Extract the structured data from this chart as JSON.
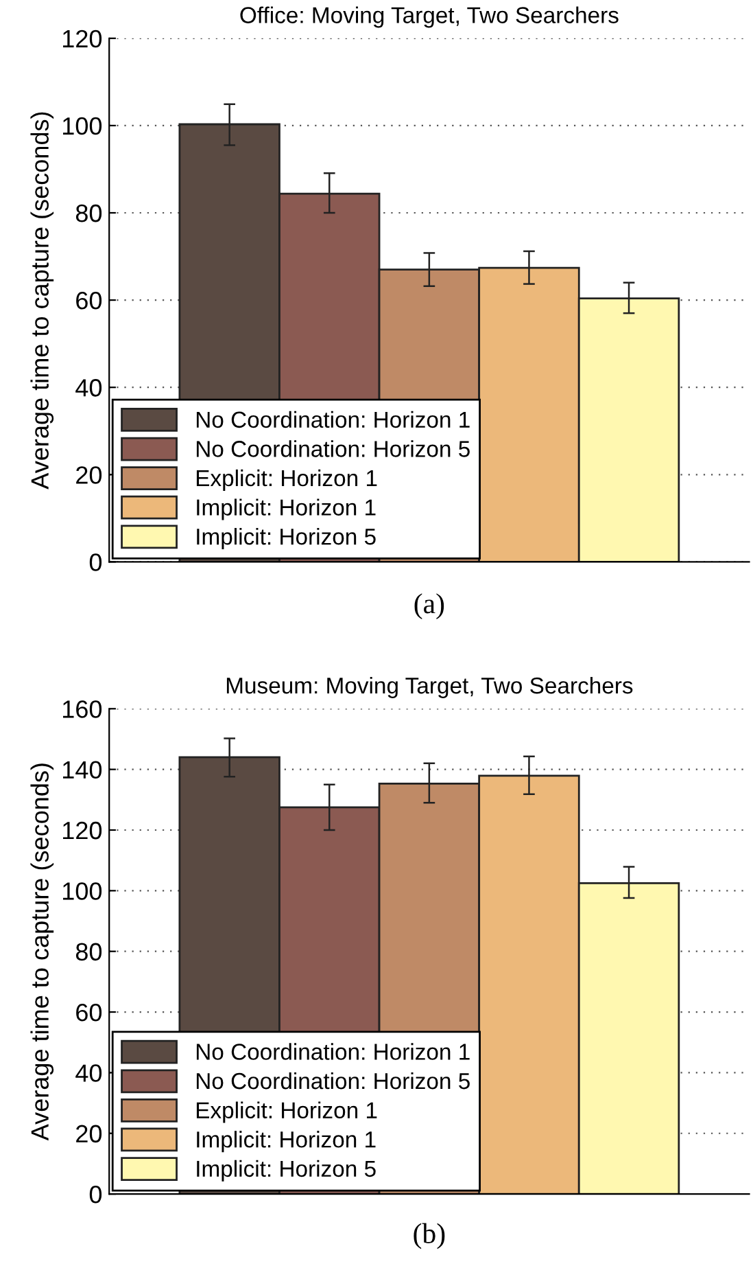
{
  "chart_data": [
    {
      "type": "bar",
      "title": "Office: Moving Target, Two Searchers",
      "ylabel": "Average time to capture (seconds)",
      "categories": [
        null
      ],
      "series": [
        {
          "name": "No Coordination: Horizon 1",
          "color": "#5a4a42",
          "values": [
            100.3
          ],
          "errors": [
            [
              95.5,
              104.9
            ]
          ]
        },
        {
          "name": "No Coordination: Horizon 5",
          "color": "#8b5a52",
          "values": [
            84.4
          ],
          "errors": [
            [
              80.0,
              89.1
            ]
          ]
        },
        {
          "name": "Explicit: Horizon 1",
          "color": "#bf8a66",
          "values": [
            67.0
          ],
          "errors": [
            [
              63.2,
              70.8
            ]
          ]
        },
        {
          "name": "Implicit: Horizon 1",
          "color": "#ecb87a",
          "values": [
            67.4
          ],
          "errors": [
            [
              63.7,
              71.2
            ]
          ]
        },
        {
          "name": "Implicit: Horizon 5",
          "color": "#fff8b0",
          "values": [
            60.4
          ],
          "errors": [
            [
              57.0,
              64.0
            ]
          ]
        }
      ],
      "ylim": [
        0,
        120
      ],
      "yticks": [
        0,
        20,
        40,
        60,
        80,
        100,
        120
      ],
      "grid": "y",
      "legend": "bottom left",
      "tick_labels": "y",
      "annotations": [
        "(a)"
      ]
    },
    {
      "type": "bar",
      "title": "Museum: Moving Target, Two Searchers",
      "ylabel": "Average time to capture (seconds)",
      "categories": [
        null
      ],
      "series": [
        {
          "name": "No Coordination: Horizon 1",
          "color": "#5a4a42",
          "values": [
            144.0
          ],
          "errors": [
            [
              137.6,
              150.2
            ]
          ]
        },
        {
          "name": "No Coordination: Horizon 5",
          "color": "#8b5a52",
          "values": [
            127.5
          ],
          "errors": [
            [
              120.0,
              135.0
            ]
          ]
        },
        {
          "name": "Explicit: Horizon 1",
          "color": "#bf8a66",
          "values": [
            135.3
          ],
          "errors": [
            [
              129.0,
              142.0
            ]
          ]
        },
        {
          "name": "Implicit: Horizon 1",
          "color": "#ecb87a",
          "values": [
            137.9
          ],
          "errors": [
            [
              131.8,
              144.3
            ]
          ]
        },
        {
          "name": "Implicit: Horizon 5",
          "color": "#fff8b0",
          "values": [
            102.5
          ],
          "errors": [
            [
              97.6,
              107.9
            ]
          ]
        }
      ],
      "ylim": [
        0,
        160
      ],
      "yticks": [
        0,
        20,
        40,
        60,
        80,
        100,
        120,
        140,
        160
      ],
      "grid": "y",
      "legend": "bottom left",
      "tick_labels": "y",
      "annotations": [
        "(b)"
      ]
    }
  ]
}
